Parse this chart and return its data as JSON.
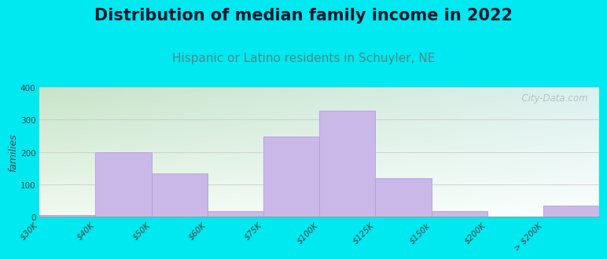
{
  "title": "Distribution of median family income in 2022",
  "subtitle": "Hispanic or Latino residents in Schuyler, NE",
  "ylabel": "families",
  "categories": [
    "$30K",
    "$40K",
    "$50K",
    "$60K",
    "$75K",
    "$100K",
    "$125K",
    "$150k",
    "$200K",
    "> $200K"
  ],
  "values": [
    5,
    200,
    133,
    18,
    248,
    328,
    120,
    18,
    0,
    35
  ],
  "bar_color": "#c9b8e8",
  "bar_edge_color": "#b39ddb",
  "background_outer": "#00e8f0",
  "plot_bg_left_top": "#c8e6c9",
  "plot_bg_right_bottom": "#e8f5f5",
  "title_fontsize": 15,
  "subtitle_fontsize": 11,
  "ylabel_fontsize": 9,
  "tick_fontsize": 7.5,
  "ylim": [
    0,
    400
  ],
  "yticks": [
    0,
    100,
    200,
    300,
    400
  ],
  "grid_color": "#cccccc",
  "watermark_text": "  City-Data.com",
  "watermark_color": "#aabbc0",
  "subtitle_color": "#4a8a8a",
  "title_color": "#1a1a2e"
}
